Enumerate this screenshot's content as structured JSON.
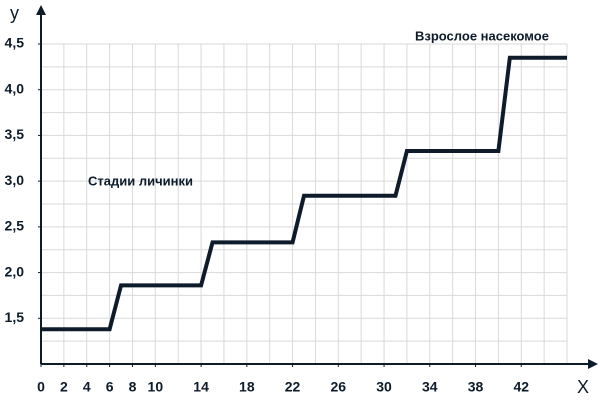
{
  "chart_data": {
    "type": "line",
    "x_label": "Х",
    "y_label": "у",
    "annotations": [
      "Стадии личинки",
      "Взрослое насекомое"
    ],
    "x": [
      0,
      6,
      7,
      14,
      15,
      22,
      23,
      31,
      32,
      40,
      41,
      46
    ],
    "series": [
      {
        "color": "#0d1b2a",
        "values": [
          1.38,
          1.38,
          1.86,
          1.86,
          2.33,
          2.33,
          2.84,
          2.84,
          3.33,
          3.33,
          4.35,
          4.35
        ]
      }
    ],
    "xlim": [
      0,
      46
    ],
    "ylim": [
      1,
      4.5
    ],
    "xticks": [
      0,
      2,
      4,
      6,
      8,
      10,
      14,
      18,
      22,
      26,
      30,
      34,
      38,
      42
    ],
    "yticks": [
      {
        "value": 1.5,
        "label": "1,5"
      },
      {
        "value": 2,
        "label": "2,0"
      },
      {
        "value": 2.5,
        "label": "2,5"
      },
      {
        "value": 3,
        "label": "3,0"
      },
      {
        "value": 3.5,
        "label": "3,5"
      },
      {
        "value": 4,
        "label": "4,0"
      },
      {
        "value": 4.5,
        "label": "4,5"
      }
    ],
    "xgrid": [
      0,
      2,
      4,
      6,
      8,
      10,
      12,
      14,
      16,
      18,
      20,
      22,
      24,
      26,
      28,
      30,
      32,
      34,
      36,
      38,
      40,
      42,
      44,
      46
    ],
    "ygrid": [
      1.25,
      1.5,
      1.75,
      2,
      2.25,
      2.5,
      2.75,
      3,
      3.25,
      3.5,
      3.75,
      4,
      4.25,
      4.5
    ],
    "grid": true
  }
}
